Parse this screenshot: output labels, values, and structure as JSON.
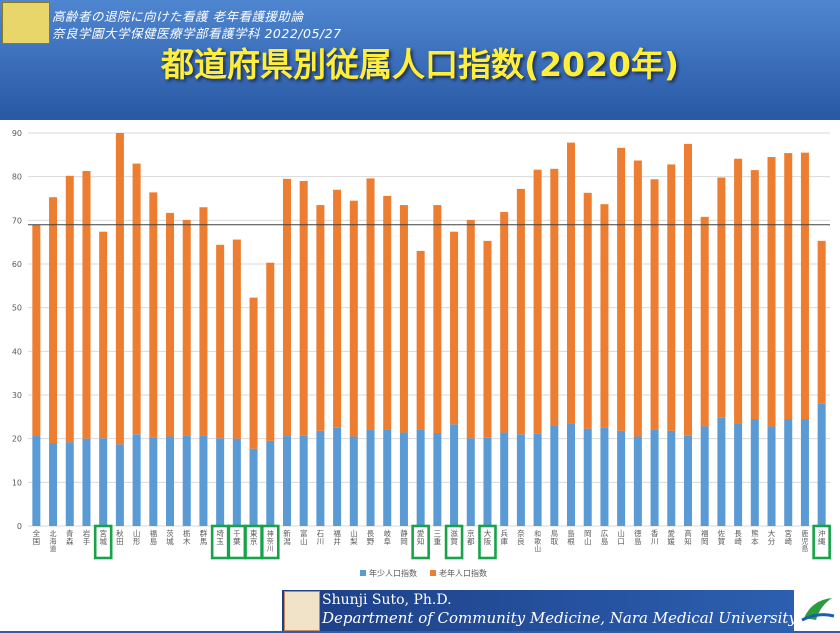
{
  "header": {
    "line1": "高齢者の退院に向けた看護 老年看護援助論",
    "line2": "奈良学園大学保健医療学部看護学科 2022/05/27"
  },
  "slide_title": "都道府県別従属人口指数(2020年)",
  "footer": {
    "name": "Shunji Suto, Ph.D.",
    "department": "Department of Community Medicine, Nara Medical University"
  },
  "chart_data": {
    "type": "bar",
    "stacked": true,
    "categories": [
      "全国",
      "北海道",
      "青森",
      "岩手",
      "宮城",
      "秋田",
      "山形",
      "福島",
      "茨城",
      "栃木",
      "群馬",
      "埼玉",
      "千葉",
      "東京",
      "神奈川",
      "新潟",
      "富山",
      "石川",
      "福井",
      "山梨",
      "長野",
      "岐阜",
      "静岡",
      "愛知",
      "三重",
      "滋賀",
      "京都",
      "大阪",
      "兵庫",
      "奈良",
      "和歌山",
      "鳥取",
      "島根",
      "岡山",
      "広島",
      "山口",
      "徳島",
      "香川",
      "愛媛",
      "高知",
      "福岡",
      "佐賀",
      "長崎",
      "熊本",
      "大分",
      "宮崎",
      "鹿児島",
      "沖縄"
    ],
    "series": [
      {
        "name": "年少人口指数",
        "color": "#5b9bd5",
        "values": [
          20.6,
          19.0,
          19.2,
          20.0,
          20.1,
          18.7,
          21.0,
          20.3,
          20.5,
          20.8,
          20.7,
          20.1,
          20.0,
          17.7,
          19.5,
          20.6,
          20.8,
          21.8,
          22.5,
          20.5,
          22.0,
          22.0,
          21.4,
          22.0,
          21.3,
          23.3,
          20.1,
          20.2,
          21.4,
          21.0,
          21.1,
          23.0,
          23.5,
          22.3,
          22.6,
          21.8,
          20.5,
          22.0,
          21.8,
          20.7,
          22.8,
          24.8,
          23.5,
          24.5,
          22.8,
          24.5,
          24.5,
          28.0
        ]
      },
      {
        "name": "老年人口指数",
        "color": "#ed7d31",
        "values": [
          48.4,
          56.3,
          61.0,
          61.3,
          47.3,
          71.3,
          62.0,
          56.1,
          51.2,
          49.3,
          52.3,
          44.3,
          45.6,
          34.6,
          40.8,
          58.9,
          58.2,
          51.7,
          54.5,
          54.0,
          57.6,
          53.6,
          52.1,
          41.0,
          52.2,
          44.1,
          50.0,
          45.1,
          50.5,
          56.2,
          60.5,
          58.8,
          64.3,
          54.0,
          51.1,
          64.8,
          63.2,
          57.4,
          61.0,
          66.8,
          48.0,
          55.0,
          60.6,
          57.0,
          61.7,
          60.9,
          61.0,
          37.3
        ]
      }
    ],
    "highlighted": [
      "宮城",
      "埼玉",
      "千葉",
      "東京",
      "神奈川",
      "愛知",
      "滋賀",
      "大阪",
      "沖縄"
    ],
    "reference_line": 69,
    "ylim": [
      0,
      90
    ],
    "yticks": [
      0,
      10,
      20,
      30,
      40,
      50,
      60,
      70,
      80,
      90
    ],
    "grid": true,
    "legend_placement": "bottom"
  }
}
